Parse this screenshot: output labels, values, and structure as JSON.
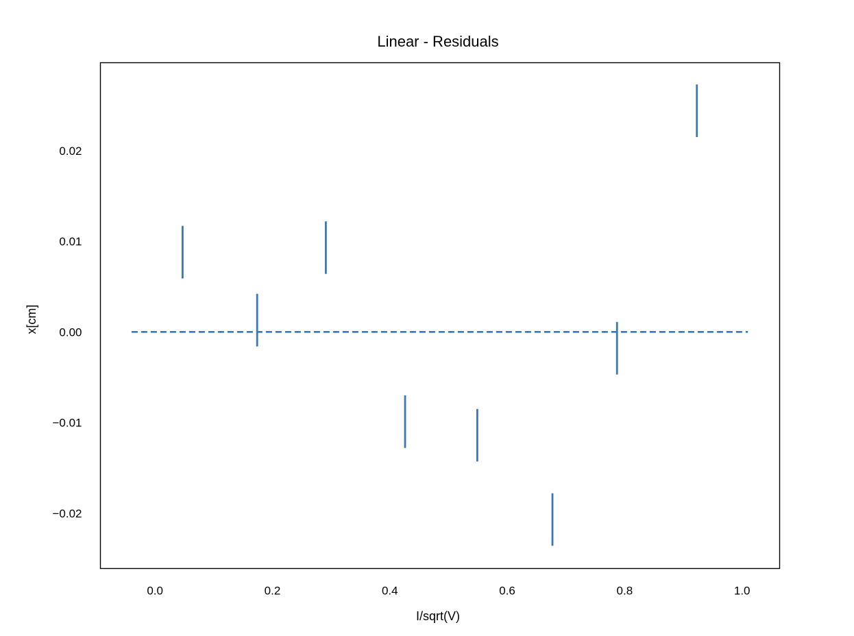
{
  "chart_data": {
    "type": "scatter",
    "title": "Linear - Residuals",
    "xlabel": "I/sqrt(V)",
    "ylabel": "x[cm]",
    "xlim": [
      -0.093,
      1.064
    ],
    "ylim": [
      -0.0261,
      0.0297
    ],
    "xticks": [
      {
        "value": 0.0,
        "label": "0.0"
      },
      {
        "value": 0.2,
        "label": "0.2"
      },
      {
        "value": 0.4,
        "label": "0.4"
      },
      {
        "value": 0.6,
        "label": "0.6"
      },
      {
        "value": 0.8,
        "label": "0.8"
      },
      {
        "value": 1.0,
        "label": "1.0"
      }
    ],
    "yticks": [
      {
        "value": -0.02,
        "label": "−0.02"
      },
      {
        "value": -0.01,
        "label": "−0.01"
      },
      {
        "value": 0.0,
        "label": "0.00"
      },
      {
        "value": 0.01,
        "label": "0.01"
      },
      {
        "value": 0.02,
        "label": "0.02"
      }
    ],
    "grid": false,
    "legend": false,
    "series": [
      {
        "marker": "errorbar",
        "color": "#3a78b6",
        "points": [
          {
            "x": 0.047,
            "y": 0.0088,
            "yerr": 0.0029
          },
          {
            "x": 0.174,
            "y": 0.0013,
            "yerr": 0.0029
          },
          {
            "x": 0.291,
            "y": 0.0093,
            "yerr": 0.0029
          },
          {
            "x": 0.426,
            "y": -0.0099,
            "yerr": 0.0029
          },
          {
            "x": 0.549,
            "y": -0.0114,
            "yerr": 0.0029
          },
          {
            "x": 0.677,
            "y": -0.0207,
            "yerr": 0.0029
          },
          {
            "x": 0.787,
            "y": -0.0018,
            "yerr": 0.0029
          },
          {
            "x": 0.923,
            "y": 0.0244,
            "yerr": 0.0029
          }
        ]
      }
    ],
    "reference_line": {
      "y": 0.0,
      "x_from": -0.04,
      "x_to": 1.01,
      "style": "dashed",
      "color": "#3a78b6"
    }
  }
}
